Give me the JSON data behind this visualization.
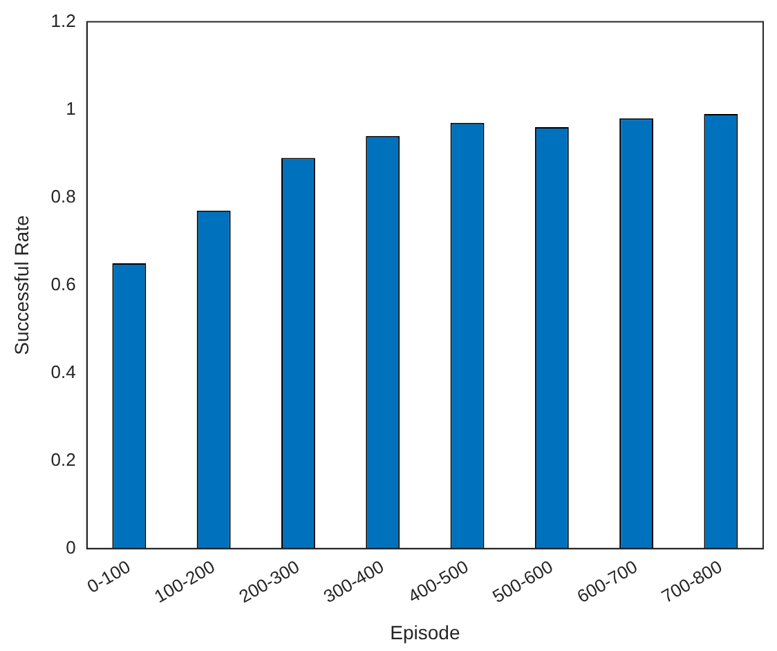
{
  "chart_data": {
    "type": "bar",
    "xlabel": "Episode",
    "ylabel": "Successful Rate",
    "categories": [
      "0-100",
      "100-200",
      "200-300",
      "300-400",
      "400-500",
      "500-600",
      "600-700",
      "700-800"
    ],
    "values": [
      0.65,
      0.77,
      0.89,
      0.94,
      0.97,
      0.96,
      0.98,
      0.99
    ],
    "color": "#0072bd",
    "ylim": [
      0,
      1.2
    ],
    "yticks": [
      0,
      0.2,
      0.4,
      0.6,
      0.8,
      1,
      1.2
    ],
    "grid": false
  }
}
